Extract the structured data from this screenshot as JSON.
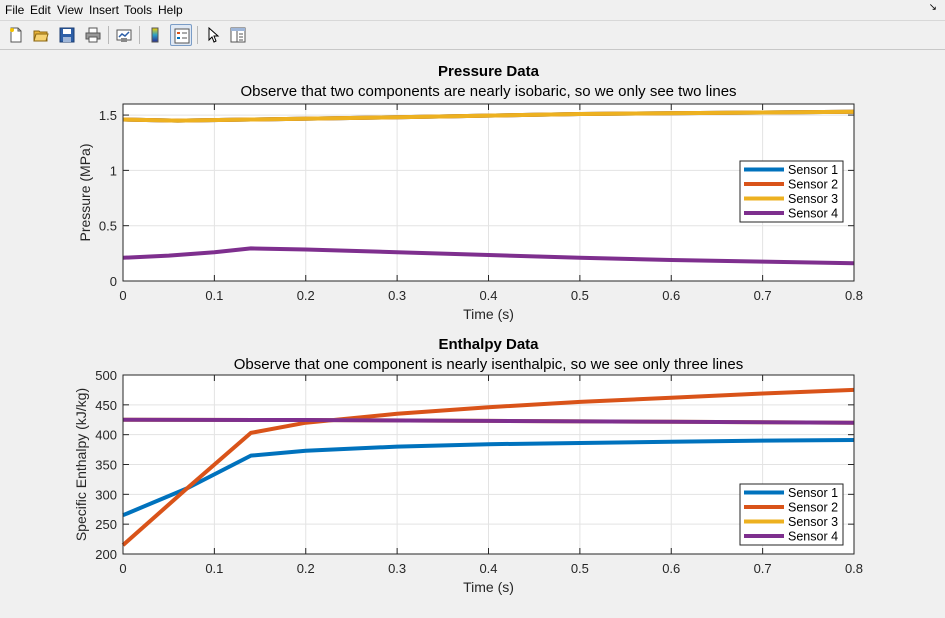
{
  "menu": [
    "File",
    "Edit",
    "View",
    "Insert",
    "Tools",
    "Help"
  ],
  "toolbar": {
    "buttons": [
      {
        "name": "new-figure-icon"
      },
      {
        "name": "open-file-icon"
      },
      {
        "name": "save-icon"
      },
      {
        "name": "print-icon"
      },
      {
        "name": "link-plot-icon"
      },
      {
        "name": "colorbar-icon"
      },
      {
        "name": "legend-icon"
      },
      {
        "name": "edit-plot-pointer-icon"
      },
      {
        "name": "property-inspector-icon"
      }
    ]
  },
  "colors": {
    "sensor1": "#0072BD",
    "sensor2": "#D95319",
    "sensor3": "#EDB120",
    "sensor4": "#7E2F8E"
  },
  "chart_data": [
    {
      "type": "line",
      "title": "Pressure Data",
      "subtitle": "Observe that two components are nearly isobaric, so we only see two lines",
      "xlabel": "Time (s)",
      "ylabel": "Pressure (MPa)",
      "xlim": [
        0,
        0.8
      ],
      "ylim": [
        0,
        1.6
      ],
      "xticks": [
        0,
        0.1,
        0.2,
        0.3,
        0.4,
        0.5,
        0.6,
        0.7,
        0.8
      ],
      "xtick_labels": [
        "0",
        "0.1",
        "0.2",
        "0.3",
        "0.4",
        "0.5",
        "0.6",
        "0.7",
        "0.8"
      ],
      "yticks": [
        0,
        0.5,
        1,
        1.5
      ],
      "ytick_labels": [
        "0",
        "0.5",
        "1",
        "1.5"
      ],
      "grid": true,
      "legend": "right",
      "series": [
        {
          "name": "Sensor 1",
          "x": [
            0,
            0.06,
            0.14,
            0.3,
            0.5,
            0.8
          ],
          "y": [
            1.46,
            1.45,
            1.46,
            1.48,
            1.51,
            1.53
          ]
        },
        {
          "name": "Sensor 2",
          "x": [
            0,
            0.06,
            0.14,
            0.3,
            0.5,
            0.8
          ],
          "y": [
            1.46,
            1.45,
            1.46,
            1.48,
            1.51,
            1.53
          ]
        },
        {
          "name": "Sensor 3",
          "x": [
            0,
            0.06,
            0.14,
            0.3,
            0.5,
            0.8
          ],
          "y": [
            1.46,
            1.45,
            1.46,
            1.48,
            1.51,
            1.53
          ]
        },
        {
          "name": "Sensor 4",
          "x": [
            0,
            0.05,
            0.1,
            0.14,
            0.2,
            0.3,
            0.4,
            0.5,
            0.6,
            0.7,
            0.8
          ],
          "y": [
            0.21,
            0.23,
            0.26,
            0.295,
            0.285,
            0.26,
            0.235,
            0.21,
            0.19,
            0.175,
            0.16
          ]
        }
      ]
    },
    {
      "type": "line",
      "title": "Enthalpy Data",
      "subtitle": "Observe that one component is nearly isenthalpic, so we see only three lines",
      "xlabel": "Time (s)",
      "ylabel": "Specific Enthalpy (kJ/kg)",
      "xlim": [
        0,
        0.8
      ],
      "ylim": [
        200,
        500
      ],
      "xticks": [
        0,
        0.1,
        0.2,
        0.3,
        0.4,
        0.5,
        0.6,
        0.7,
        0.8
      ],
      "xtick_labels": [
        "0",
        "0.1",
        "0.2",
        "0.3",
        "0.4",
        "0.5",
        "0.6",
        "0.7",
        "0.8"
      ],
      "yticks": [
        200,
        250,
        300,
        350,
        400,
        450,
        500
      ],
      "ytick_labels": [
        "200",
        "250",
        "300",
        "350",
        "400",
        "450",
        "500"
      ],
      "grid": true,
      "legend": "bottom-right",
      "series": [
        {
          "name": "Sensor 1",
          "x": [
            0,
            0.07,
            0.14,
            0.2,
            0.3,
            0.4,
            0.5,
            0.6,
            0.7,
            0.8
          ],
          "y": [
            265,
            310,
            365,
            373,
            380,
            384,
            386,
            388,
            390,
            391
          ]
        },
        {
          "name": "Sensor 2",
          "x": [
            0,
            0.07,
            0.14,
            0.2,
            0.3,
            0.4,
            0.5,
            0.6,
            0.7,
            0.8
          ],
          "y": [
            215,
            310,
            403,
            420,
            435,
            446,
            455,
            462,
            469,
            475
          ]
        },
        {
          "name": "Sensor 3",
          "x": [
            0,
            0.2,
            0.4,
            0.6,
            0.8
          ],
          "y": [
            425,
            424.5,
            423,
            421.5,
            420
          ]
        },
        {
          "name": "Sensor 4",
          "x": [
            0,
            0.2,
            0.4,
            0.6,
            0.8
          ],
          "y": [
            425,
            424.5,
            423,
            421.5,
            420
          ]
        }
      ]
    }
  ]
}
